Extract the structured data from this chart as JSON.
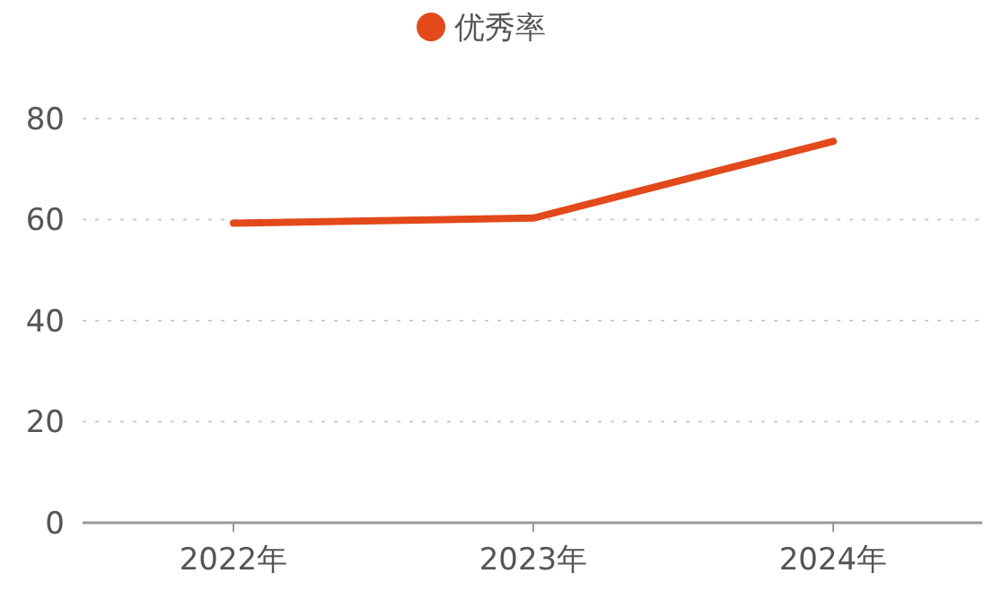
{
  "chart_data": {
    "type": "line",
    "categories": [
      "2022年",
      "2023年",
      "2024年"
    ],
    "series": [
      {
        "name": "优秀率",
        "color": "#e2491b",
        "values": [
          59.3,
          60.3,
          75.5
        ]
      }
    ],
    "ylim": [
      0,
      80
    ],
    "yticks": [
      0,
      20,
      40,
      60,
      80
    ],
    "grid": "y",
    "legend": "top",
    "marker": "none",
    "line_style": "solid"
  }
}
